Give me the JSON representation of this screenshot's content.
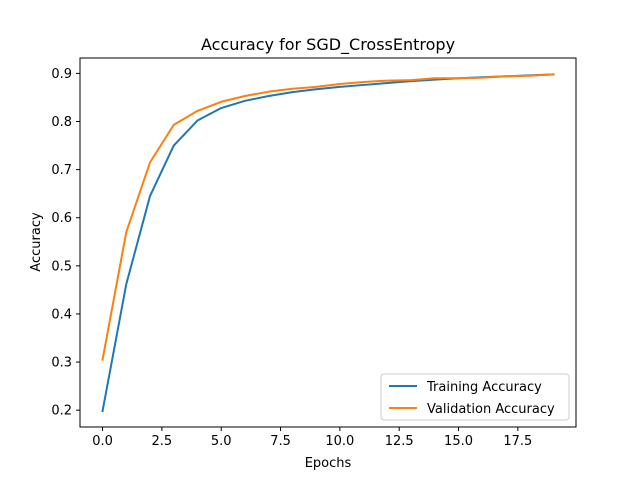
{
  "chart_data": {
    "type": "line",
    "title": "Accuracy for SGD_CrossEntropy",
    "xlabel": "Epochs",
    "ylabel": "Accuracy",
    "xlim": [
      -0.95,
      19.95
    ],
    "ylim": [
      0.165,
      0.932
    ],
    "x_ticks": [
      0.0,
      2.5,
      5.0,
      7.5,
      10.0,
      12.5,
      15.0,
      17.5
    ],
    "x_tick_labels": [
      "0.0",
      "2.5",
      "5.0",
      "7.5",
      "10.0",
      "12.5",
      "15.0",
      "17.5"
    ],
    "y_ticks": [
      0.2,
      0.3,
      0.4,
      0.5,
      0.6,
      0.7,
      0.8,
      0.9
    ],
    "y_tick_labels": [
      "0.2",
      "0.3",
      "0.4",
      "0.5",
      "0.6",
      "0.7",
      "0.8",
      "0.9"
    ],
    "grid": false,
    "legend_position": "lower-right",
    "x": [
      0,
      1,
      2,
      3,
      4,
      5,
      6,
      7,
      8,
      9,
      10,
      11,
      12,
      13,
      14,
      15,
      16,
      17,
      18,
      19
    ],
    "series": [
      {
        "name": "Training Accuracy",
        "color": "#1f77b4",
        "values": [
          0.198,
          0.462,
          0.645,
          0.75,
          0.802,
          0.828,
          0.843,
          0.853,
          0.861,
          0.867,
          0.872,
          0.876,
          0.88,
          0.884,
          0.887,
          0.89,
          0.892,
          0.894,
          0.896,
          0.898
        ]
      },
      {
        "name": "Validation Accuracy",
        "color": "#ff7f0e",
        "values": [
          0.305,
          0.57,
          0.715,
          0.793,
          0.822,
          0.841,
          0.853,
          0.862,
          0.868,
          0.872,
          0.878,
          0.882,
          0.885,
          0.886,
          0.89,
          0.89,
          0.891,
          0.894,
          0.895,
          0.898
        ]
      }
    ]
  }
}
